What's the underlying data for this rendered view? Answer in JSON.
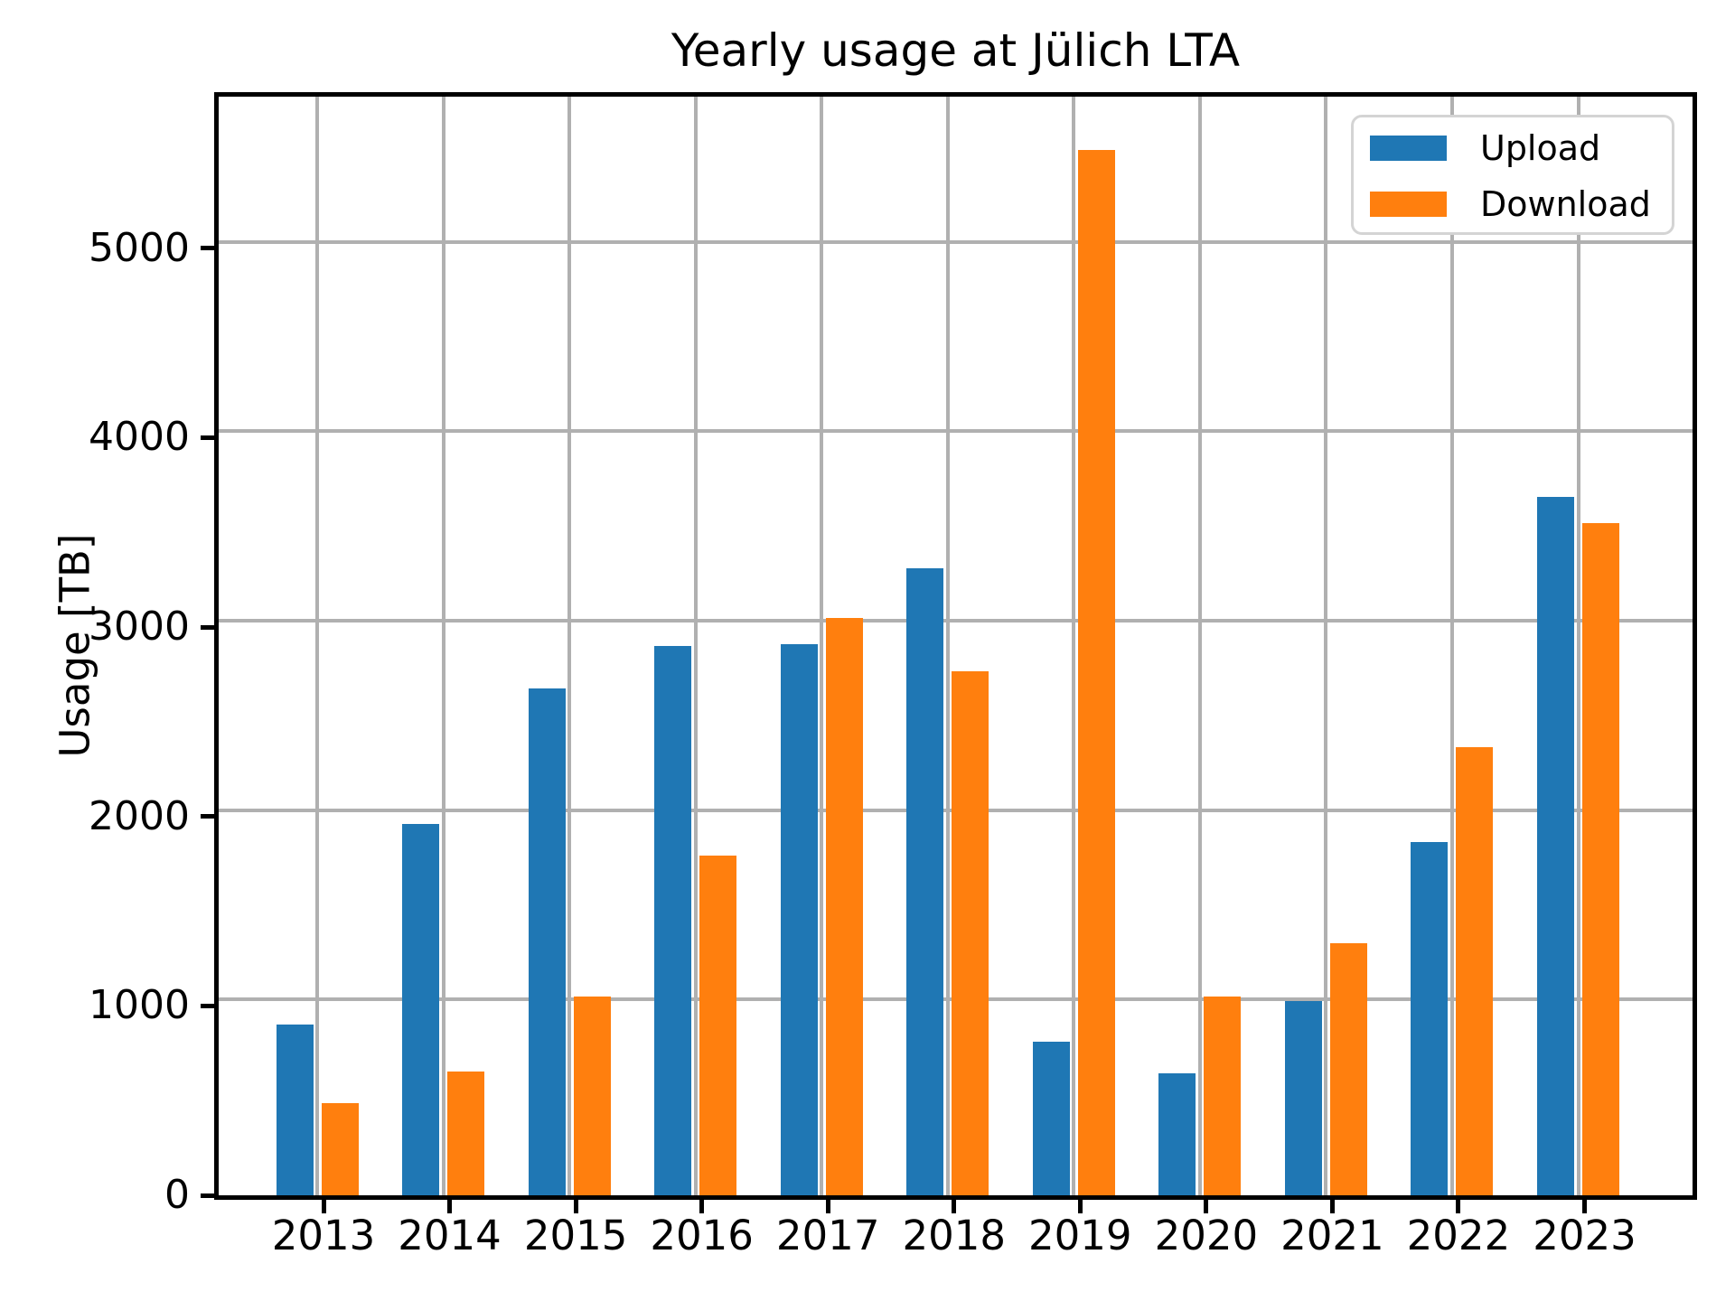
{
  "chart_data": {
    "type": "bar",
    "title": "Yearly usage at Jülich LTA",
    "ylabel": "Usage [TB]",
    "xlabel": "",
    "categories": [
      "2013",
      "2014",
      "2015",
      "2016",
      "2017",
      "2018",
      "2019",
      "2020",
      "2021",
      "2022",
      "2023"
    ],
    "series": [
      {
        "name": "Upload",
        "color": "#1f77b4",
        "values": [
          900,
          1960,
          2675,
          2900,
          2910,
          3310,
          810,
          645,
          1025,
          1865,
          3685
        ]
      },
      {
        "name": "Download",
        "color": "#ff7f0e",
        "values": [
          485,
          655,
          1050,
          1795,
          3050,
          2765,
          5520,
          1050,
          1330,
          2365,
          3550
        ]
      }
    ],
    "ylim": [
      0,
      5800
    ],
    "yticks": [
      0,
      1000,
      2000,
      3000,
      4000,
      5000
    ],
    "grid": true,
    "grid_color": "#b0b0b0",
    "legend_position": "upper right"
  }
}
